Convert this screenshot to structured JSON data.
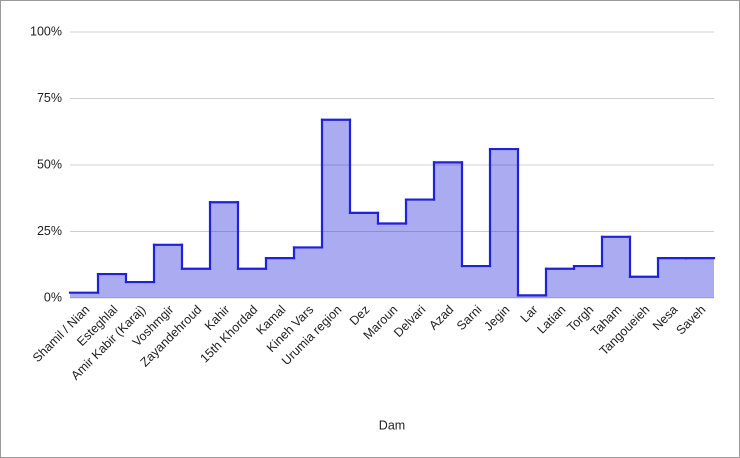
{
  "chart_data": {
    "type": "stepped-area",
    "x_label": "Dam",
    "categories": [
      "Shamil / Nian",
      "Esteghlal",
      "Amir Kabir (Karaj)",
      "Voshmgir",
      "Zayandehroud",
      "Kahir",
      "15th Khordad",
      "Kamal",
      "Kineh Vars",
      "Urumia region",
      "Dez",
      "Maroun",
      "Delvari",
      "Azad",
      "Sarni",
      "Jegin",
      "Lar",
      "Latian",
      "Torgh",
      "Taham",
      "Tangoueieh",
      "Nesa",
      "Saveh"
    ],
    "values": [
      2,
      9,
      6,
      20,
      11,
      36,
      11,
      15,
      19,
      67,
      32,
      28,
      37,
      51,
      12,
      56,
      1,
      11,
      12,
      23,
      8,
      15,
      15
    ],
    "color": "#2121d9",
    "ylim": [
      0,
      100
    ],
    "yticks": [
      {
        "value": 0,
        "label": "0%"
      },
      {
        "value": 25,
        "label": "25%"
      },
      {
        "value": 50,
        "label": "50%"
      },
      {
        "value": 75,
        "label": "75%"
      },
      {
        "value": 100,
        "label": "100%"
      }
    ],
    "grid": true
  }
}
